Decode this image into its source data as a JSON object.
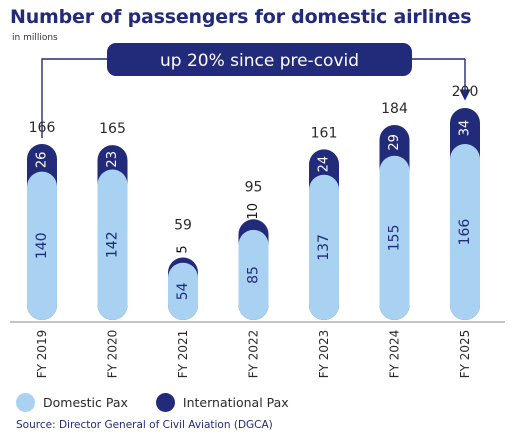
{
  "title": "Number of passengers for domestic airlines",
  "subtitle": "in millions",
  "annotation": "up 20% since pre-covid",
  "source": "Source: Director General of Civil Aviation (DGCA)",
  "legend": {
    "domestic": "Domestic Pax",
    "international": "International Pax"
  },
  "colors": {
    "domestic": "#a9d1f1",
    "international": "#222a7a",
    "accent": "#222a7a",
    "axis": "#8a8a8a"
  },
  "chart_data": {
    "type": "bar",
    "stacked": true,
    "categories": [
      "FY 2019",
      "FY 2020",
      "FY 2021",
      "FY 2022",
      "FY 2023",
      "FY 2024",
      "FY 2025"
    ],
    "series": [
      {
        "name": "Domestic Pax",
        "values": [
          140,
          142,
          54,
          85,
          137,
          155,
          166
        ]
      },
      {
        "name": "International Pax",
        "values": [
          26,
          23,
          5,
          10,
          24,
          29,
          34
        ]
      }
    ],
    "totals": [
      166,
      165,
      59,
      95,
      161,
      184,
      200
    ],
    "ylim": [
      0,
      200
    ],
    "legend_position": "bottom-left"
  }
}
